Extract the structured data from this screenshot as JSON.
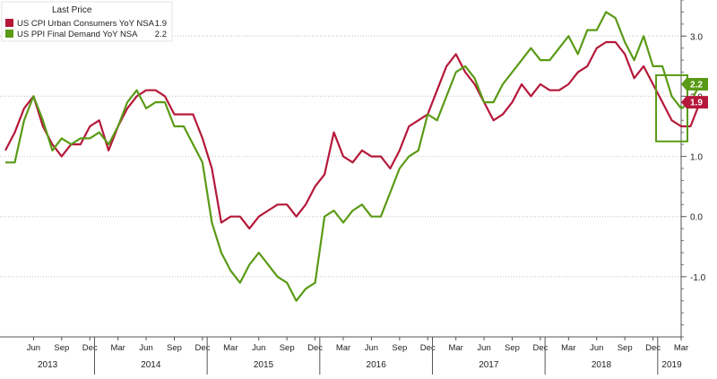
{
  "chart_data": {
    "type": "line",
    "legend": {
      "title": "Last Price",
      "placement": "top-left"
    },
    "series": [
      {
        "name": "US CPI Urban Consumers YoY NSA",
        "last_value": "1.9",
        "color": "#b5183a",
        "values": [
          1.1,
          1.4,
          1.8,
          2.0,
          1.5,
          1.2,
          1.0,
          1.2,
          1.2,
          1.5,
          1.6,
          1.1,
          1.5,
          1.8,
          2.0,
          2.1,
          2.1,
          2.0,
          1.7,
          1.7,
          1.7,
          1.3,
          0.8,
          -0.1,
          0.0,
          0.0,
          -0.2,
          0.0,
          0.1,
          0.2,
          0.2,
          0.0,
          0.2,
          0.5,
          0.7,
          1.4,
          1.0,
          0.9,
          1.1,
          1.0,
          1.0,
          0.8,
          1.1,
          1.5,
          1.6,
          1.7,
          2.1,
          2.5,
          2.7,
          2.4,
          2.2,
          1.9,
          1.6,
          1.7,
          1.9,
          2.2,
          2.0,
          2.2,
          2.1,
          2.1,
          2.2,
          2.4,
          2.5,
          2.8,
          2.9,
          2.9,
          2.7,
          2.3,
          2.5,
          2.2,
          1.9,
          1.6,
          1.5,
          1.5,
          1.9
        ]
      },
      {
        "name": "US PPI Final Demand YoY NSA",
        "last_value": "2.2",
        "color": "#5a9a16",
        "values": [
          0.9,
          0.9,
          1.6,
          2.0,
          1.6,
          1.1,
          1.3,
          1.2,
          1.3,
          1.3,
          1.4,
          1.2,
          1.5,
          1.9,
          2.1,
          1.8,
          1.9,
          1.9,
          1.5,
          1.5,
          1.2,
          0.9,
          -0.1,
          -0.6,
          -0.9,
          -1.1,
          -0.8,
          -0.6,
          -0.8,
          -1.0,
          -1.1,
          -1.4,
          -1.2,
          -1.1,
          0.0,
          0.1,
          -0.1,
          0.1,
          0.2,
          0.0,
          0.0,
          0.4,
          0.8,
          1.0,
          1.1,
          1.7,
          1.6,
          2.0,
          2.4,
          2.5,
          2.3,
          1.9,
          1.9,
          2.2,
          2.4,
          2.6,
          2.8,
          2.6,
          2.6,
          2.8,
          3.0,
          2.7,
          3.1,
          3.1,
          3.4,
          3.3,
          2.9,
          2.6,
          3.0,
          2.5,
          2.5,
          2.0,
          1.8,
          1.9,
          2.2
        ]
      }
    ],
    "y_axis": {
      "position": "right",
      "ylim": [
        -2.0,
        3.6
      ],
      "ticks": [
        3.0,
        2.0,
        1.0,
        0.0,
        -1.0
      ],
      "tick_labels": [
        "3.0",
        "2.0",
        "1.0",
        "0.0",
        "-1.0"
      ],
      "minor_step": 0.2
    },
    "x_axis": {
      "start": "2013-03",
      "end": "2019-03",
      "month_ticks": [
        {
          "date": "2013-06",
          "label": "Jun"
        },
        {
          "date": "2013-09",
          "label": "Sep"
        },
        {
          "date": "2013-12",
          "label": "Dec"
        },
        {
          "date": "2014-03",
          "label": "Mar"
        },
        {
          "date": "2014-06",
          "label": "Jun"
        },
        {
          "date": "2014-09",
          "label": "Sep"
        },
        {
          "date": "2014-12",
          "label": "Dec"
        },
        {
          "date": "2015-03",
          "label": "Mar"
        },
        {
          "date": "2015-06",
          "label": "Jun"
        },
        {
          "date": "2015-09",
          "label": "Sep"
        },
        {
          "date": "2015-12",
          "label": "Dec"
        },
        {
          "date": "2016-03",
          "label": "Mar"
        },
        {
          "date": "2016-06",
          "label": "Jun"
        },
        {
          "date": "2016-09",
          "label": "Sep"
        },
        {
          "date": "2016-12",
          "label": "Dec"
        },
        {
          "date": "2017-03",
          "label": "Mar"
        },
        {
          "date": "2017-06",
          "label": "Jun"
        },
        {
          "date": "2017-09",
          "label": "Sep"
        },
        {
          "date": "2017-12",
          "label": "Dec"
        },
        {
          "date": "2018-03",
          "label": "Mar"
        },
        {
          "date": "2018-06",
          "label": "Jun"
        },
        {
          "date": "2018-09",
          "label": "Sep"
        },
        {
          "date": "2018-12",
          "label": "Dec"
        },
        {
          "date": "2019-03",
          "label": "Mar"
        }
      ],
      "years": [
        {
          "label": "2013",
          "start": "2013-03",
          "end": "2013-12"
        },
        {
          "label": "2014",
          "start": "2014-01",
          "end": "2014-12"
        },
        {
          "label": "2015",
          "start": "2015-01",
          "end": "2015-12"
        },
        {
          "label": "2016",
          "start": "2016-01",
          "end": "2016-12"
        },
        {
          "label": "2017",
          "start": "2017-01",
          "end": "2017-12"
        },
        {
          "label": "2018",
          "start": "2018-01",
          "end": "2018-12"
        },
        {
          "label": "2019",
          "start": "2019-01",
          "end": "2019-03"
        }
      ]
    },
    "highlight": {
      "color": "#5a9a16",
      "x_from": "2019-01",
      "x_to": "2019-03",
      "y_from": 1.25,
      "y_to": 2.35
    },
    "grid": "horizontal-dotted"
  }
}
